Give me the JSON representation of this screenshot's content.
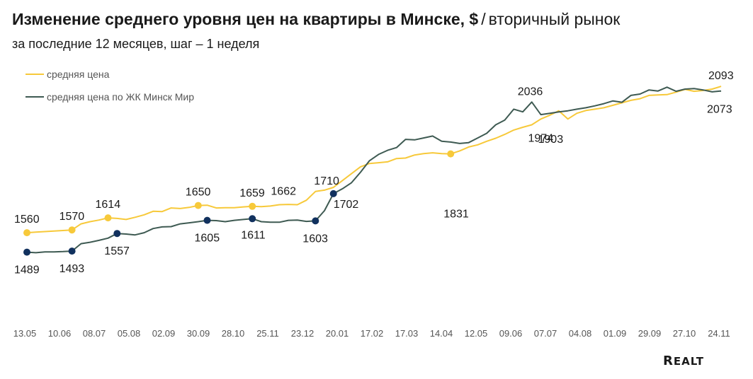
{
  "header": {
    "title": "Изменение среднего уровня цен на квартиры в Минске, $",
    "separator": "/",
    "title_suffix": "вторичный рынок",
    "subtitle": "за последние 12 месяцев, шаг – 1 неделя"
  },
  "logo": {
    "big": "R",
    "rest": "EALT"
  },
  "colors": {
    "avg": "#f7c93a",
    "minsk_mir": "#3e5a52",
    "marker_dark": "#11315e",
    "text": "#1a1a1a",
    "axis_text": "#555555"
  },
  "chart_data": {
    "type": "line",
    "x_tick_labels": [
      "13.05",
      "10.06",
      "08.07",
      "05.08",
      "02.09",
      "30.09",
      "28.10",
      "25.11",
      "23.12",
      "20.01",
      "17.02",
      "17.03",
      "14.04",
      "12.05",
      "09.06",
      "07.07",
      "04.08",
      "01.09",
      "29.09",
      "27.10",
      "24.11"
    ],
    "ylim": [
      1300,
      2150
    ],
    "grid": false,
    "legend": "top-left",
    "series": [
      {
        "name": "средняя цена",
        "values": [
          1560,
          1562,
          1564,
          1566,
          1568,
          1570,
          1592,
          1600,
          1606,
          1614,
          1612,
          1608,
          1616,
          1625,
          1638,
          1637,
          1650,
          1648,
          1652,
          1659,
          1660,
          1650,
          1651,
          1651,
          1654,
          1656,
          1655,
          1657,
          1662,
          1663,
          1662,
          1678,
          1710,
          1715,
          1725,
          1750,
          1775,
          1800,
          1812,
          1815,
          1818,
          1830,
          1832,
          1843,
          1848,
          1851,
          1848,
          1847,
          1858,
          1872,
          1880,
          1893,
          1904,
          1918,
          1934,
          1944,
          1953,
          1974,
          1988,
          2004,
          1974,
          1995,
          2005,
          2010,
          2015,
          2024,
          2033,
          2042,
          2048,
          2060,
          2062,
          2063,
          2072,
          2082,
          2075,
          2078,
          2083,
          2093
        ],
        "labels": [
          {
            "value": "1560"
          },
          {
            "value": "1570"
          },
          {
            "value": "1614"
          },
          {
            "value": "1650"
          },
          {
            "value": "1659"
          },
          {
            "value": "1662"
          },
          {
            "value": "1710"
          },
          {
            "value": "1831"
          },
          {
            "value": "1974"
          },
          {
            "value": "2093"
          }
        ]
      },
      {
        "name": "средняя цена по ЖК Минск Мир",
        "values": [
          1489,
          1487,
          1490,
          1490,
          1491,
          1493,
          1520,
          1525,
          1532,
          1540,
          1557,
          1555,
          1552,
          1560,
          1575,
          1581,
          1582,
          1592,
          1596,
          1600,
          1605,
          1604,
          1600,
          1605,
          1608,
          1611,
          1600,
          1598,
          1598,
          1605,
          1606,
          1601,
          1603,
          1640,
          1702,
          1720,
          1742,
          1780,
          1822,
          1845,
          1860,
          1870,
          1900,
          1898,
          1905,
          1912,
          1893,
          1890,
          1885,
          1888,
          1905,
          1922,
          1953,
          1970,
          2010,
          2000,
          2036,
          1990,
          1995,
          2000,
          2004,
          2010,
          2015,
          2022,
          2030,
          2040,
          2035,
          2060,
          2065,
          2080,
          2076,
          2090,
          2075,
          2083,
          2085,
          2080,
          2073,
          2076
        ],
        "labels": [
          {
            "value": "1489"
          },
          {
            "value": "1493"
          },
          {
            "value": "1557"
          },
          {
            "value": "1605"
          },
          {
            "value": "1611"
          },
          {
            "value": "1603"
          },
          {
            "value": "1702"
          },
          {
            "value": "2036"
          },
          {
            "value": "1903"
          },
          {
            "value": "2073"
          }
        ]
      }
    ]
  }
}
